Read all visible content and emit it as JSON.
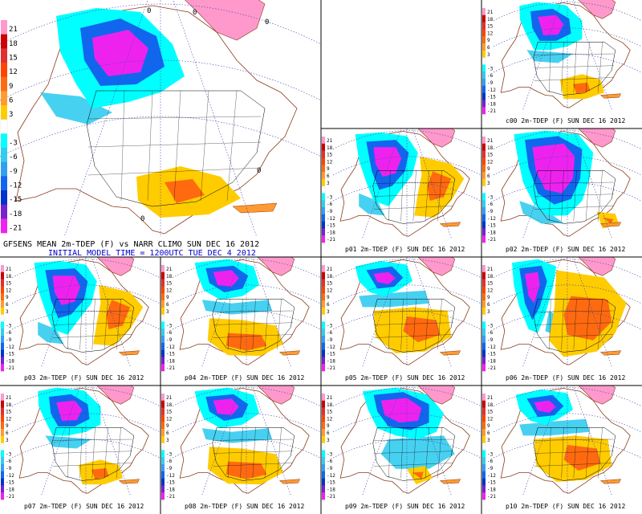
{
  "colors": {
    "c21": "#ff99cc",
    "c18": "#cc0000",
    "c15": "#e03030",
    "c12": "#ff4400",
    "c9": "#ff6a10",
    "c6": "#ff9a30",
    "c3": "#ffcc00",
    "c0": "#ffffff",
    "cm3": "#00ffff",
    "cm6": "#33ccee",
    "cm9": "#33a0ee",
    "cm12": "#1166ee",
    "cm15": "#0033cc",
    "cm18": "#7722cc",
    "cm21": "#ee22ee",
    "land_outline": "#8b3a1a",
    "state_lines": "#000000",
    "latlon": "#4444aa",
    "init_time_text": "#0000cc"
  },
  "legend_labels": [
    "21",
    "18",
    "15",
    "12",
    "9",
    "6",
    "3",
    "",
    "-3",
    "-6",
    "-9",
    "-12",
    "-15",
    "-18",
    "-21"
  ],
  "main_panel": {
    "title": "GFSENS MEAN 2m-TDEP (F) vs NARR CLIMO SUN DEC 16 2012",
    "init_time": "INITIAL MODEL TIME = 1200UTC TUE DEC 4 2012",
    "contour_labels": [
      "0",
      "0",
      "0",
      "0",
      "0"
    ]
  },
  "panels": [
    {
      "id": "c00",
      "title": "c00 2m-TDEP (F) SUN DEC 16 2012",
      "pattern": "cold-north"
    },
    {
      "id": "p01",
      "title": "p01 2m-TDEP (F) SUN DEC 16 2012",
      "pattern": "cold-west"
    },
    {
      "id": "p02",
      "title": "p02 2m-TDEP (F) SUN DEC 16 2012",
      "pattern": "cold-deep"
    },
    {
      "id": "p03",
      "title": "p03 2m-TDEP (F) SUN DEC 16 2012",
      "pattern": "cold-west"
    },
    {
      "id": "p04",
      "title": "p04 2m-TDEP (F) SUN DEC 16 2012",
      "pattern": "mild-south"
    },
    {
      "id": "p05",
      "title": "p05 2m-TDEP (F) SUN DEC 16 2012",
      "pattern": "mixed"
    },
    {
      "id": "p06",
      "title": "p06 2m-TDEP (F) SUN DEC 16 2012",
      "pattern": "warm-east"
    },
    {
      "id": "p07",
      "title": "p07 2m-TDEP (F) SUN DEC 16 2012",
      "pattern": "cold-north"
    },
    {
      "id": "p08",
      "title": "p08 2m-TDEP (F) SUN DEC 16 2012",
      "pattern": "mild-south"
    },
    {
      "id": "p09",
      "title": "p09 2m-TDEP (F) SUN DEC 16 2012",
      "pattern": "cold-east"
    },
    {
      "id": "p10",
      "title": "p10 2m-TDEP (F) SUN DEC 16 2012",
      "pattern": "mixed"
    }
  ]
}
